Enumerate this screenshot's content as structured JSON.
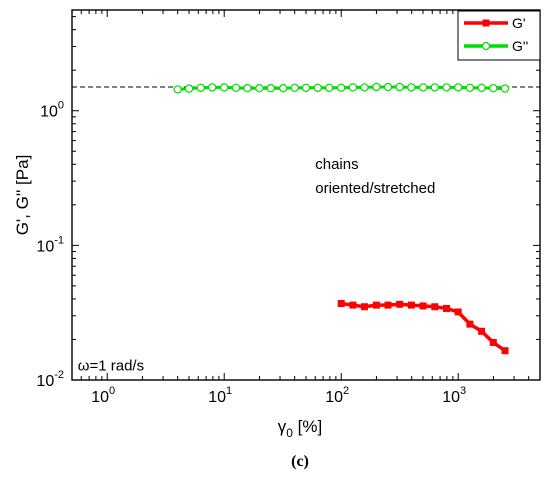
{
  "chart_data": {
    "type": "scatter",
    "panel_label": "(c)",
    "xlabel_main": "γ",
    "xlabel_sub": "0",
    "xlabel_unit": " [%]",
    "ylabel": "G', G'' [Pa]",
    "xscale": "log",
    "yscale": "log",
    "xlim": [
      0.5,
      5000
    ],
    "ylim": [
      0.01,
      5.6
    ],
    "x_ticks": [
      {
        "value": 1,
        "base": "10",
        "exp": "0"
      },
      {
        "value": 10,
        "base": "10",
        "exp": "1"
      },
      {
        "value": 100,
        "base": "10",
        "exp": "2"
      },
      {
        "value": 1000,
        "base": "10",
        "exp": "3"
      }
    ],
    "y_ticks": [
      {
        "value": 0.01,
        "base": "10",
        "exp": "-2"
      },
      {
        "value": 0.1,
        "base": "10",
        "exp": "-1"
      },
      {
        "value": 1,
        "base": "10",
        "exp": "0"
      }
    ],
    "legend_position": "top-right",
    "series": [
      {
        "name": "G'",
        "color": "#ff0000",
        "marker": "square-filled",
        "x": [
          100,
          126,
          158,
          200,
          251,
          316,
          398,
          501,
          631,
          794,
          1000,
          1259,
          1585,
          1995,
          2512
        ],
        "y": [
          0.037,
          0.036,
          0.035,
          0.036,
          0.036,
          0.0365,
          0.036,
          0.0355,
          0.035,
          0.034,
          0.032,
          0.026,
          0.023,
          0.019,
          0.0165
        ]
      },
      {
        "name": "G''",
        "color": "#00dd00",
        "marker": "circle-open",
        "x": [
          4,
          5,
          6.3,
          7.9,
          10,
          12.6,
          15.8,
          20,
          25,
          32,
          40,
          50,
          63,
          79,
          100,
          126,
          158,
          200,
          251,
          316,
          398,
          501,
          631,
          794,
          1000,
          1259,
          1585,
          1995,
          2512
        ],
        "y": [
          1.44,
          1.46,
          1.48,
          1.49,
          1.49,
          1.48,
          1.47,
          1.47,
          1.47,
          1.47,
          1.48,
          1.48,
          1.48,
          1.48,
          1.48,
          1.49,
          1.49,
          1.5,
          1.5,
          1.5,
          1.49,
          1.49,
          1.49,
          1.49,
          1.49,
          1.48,
          1.48,
          1.47,
          1.46
        ]
      }
    ],
    "reference_line": {
      "y": 1.5,
      "style": "dashed"
    },
    "annotations": [
      {
        "text": "chains",
        "x": 60,
        "y": 0.37
      },
      {
        "text": "oriented/stretched",
        "x": 60,
        "y": 0.245
      },
      {
        "text": "ω=1 rad/s",
        "x": 0.56,
        "y": 0.0118
      }
    ]
  }
}
